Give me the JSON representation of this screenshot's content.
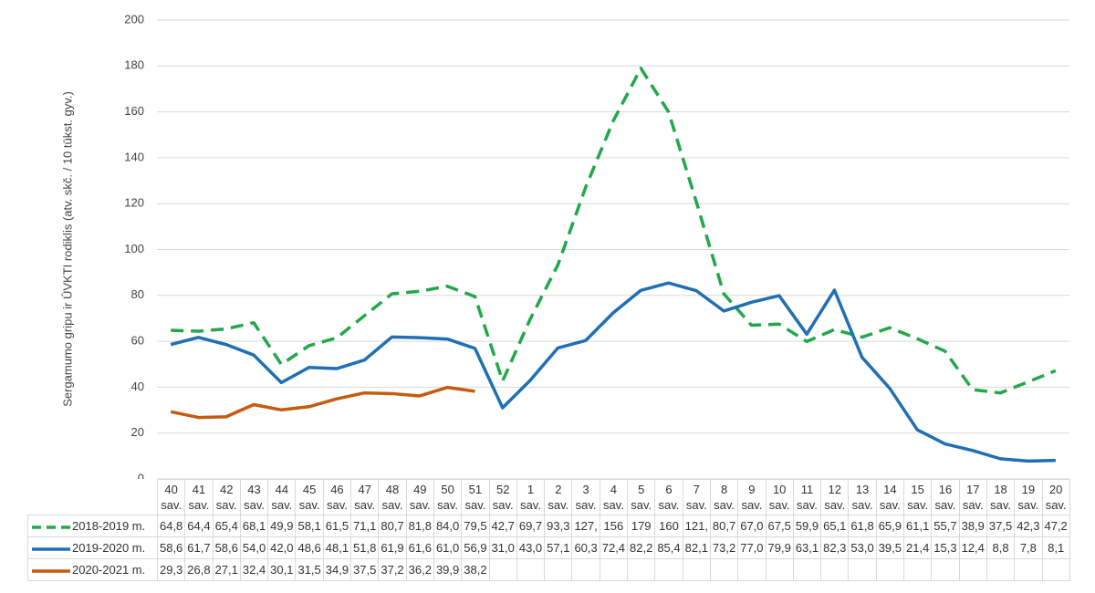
{
  "chart_data": {
    "type": "line",
    "y_label": "Sergamumo gripu ir ŪVKTI rodiklis (atv. skč. / 10 tūkst. gyv.)",
    "categories": [
      "40 sav.",
      "41 sav.",
      "42 sav.",
      "43 sav.",
      "44 sav.",
      "45 sav.",
      "46 sav.",
      "47 sav.",
      "48 sav.",
      "49 sav.",
      "50 sav.",
      "51 sav.",
      "52 sav.",
      "1 sav.",
      "2 sav.",
      "3 sav.",
      "4 sav.",
      "5 sav.",
      "6 sav.",
      "7 sav.",
      "8 sav.",
      "9 sav.",
      "10 sav.",
      "11 sav.",
      "12 sav.",
      "13 sav.",
      "14 sav.",
      "15 sav.",
      "16 sav.",
      "17 sav.",
      "18 sav.",
      "19 sav.",
      "20 sav."
    ],
    "ylim": [
      0,
      200
    ],
    "yticks": [
      0,
      20,
      40,
      60,
      80,
      100,
      120,
      140,
      160,
      180,
      200
    ],
    "grid": true,
    "series": [
      {
        "name": "2018-2019 m.",
        "color": "#22a84a",
        "dashed": true,
        "values": [
          64.8,
          64.4,
          65.4,
          68.1,
          49.9,
          58.1,
          61.5,
          71.1,
          80.7,
          81.8,
          84.0,
          79.5,
          42.7,
          69.7,
          93.3,
          127,
          156,
          179,
          160,
          121,
          80.7,
          67.0,
          67.5,
          59.9,
          65.1,
          61.8,
          65.9,
          61.1,
          55.7,
          38.9,
          37.5,
          42.3,
          47.2
        ],
        "value_labels": [
          "64,8",
          "64,4",
          "65,4",
          "68,1",
          "49,9",
          "58,1",
          "61,5",
          "71,1",
          "80,7",
          "81,8",
          "84,0",
          "79,5",
          "42,7",
          "69,7",
          "93,3",
          "127,",
          "156",
          "179",
          "160",
          "121,",
          "80,7",
          "67,0",
          "67,5",
          "59,9",
          "65,1",
          "61,8",
          "65,9",
          "61,1",
          "55,7",
          "38,9",
          "37,5",
          "42,3",
          "47,2"
        ]
      },
      {
        "name": "2019-2020 m.",
        "color": "#1f6fb5",
        "dashed": false,
        "values": [
          58.6,
          61.7,
          58.6,
          54.0,
          42.0,
          48.6,
          48.1,
          51.8,
          61.9,
          61.6,
          61.0,
          56.9,
          31.0,
          43.0,
          57.1,
          60.3,
          72.4,
          82.2,
          85.4,
          82.1,
          73.2,
          77.0,
          79.9,
          63.1,
          82.3,
          53.0,
          39.5,
          21.4,
          15.3,
          12.4,
          8.8,
          7.8,
          8.1
        ],
        "value_labels": [
          "58,6",
          "61,7",
          "58,6",
          "54,0",
          "42,0",
          "48,6",
          "48,1",
          "51,8",
          "61,9",
          "61,6",
          "61,0",
          "56,9",
          "31,0",
          "43,0",
          "57,1",
          "60,3",
          "72,4",
          "82,2",
          "85,4",
          "82,1",
          "73,2",
          "77,0",
          "79,9",
          "63,1",
          "82,3",
          "53,0",
          "39,5",
          "21,4",
          "15,3",
          "12,4",
          "8,8",
          "7,8",
          "8,1"
        ]
      },
      {
        "name": "2020-2021 m.",
        "color": "#c55a11",
        "dashed": false,
        "values": [
          29.3,
          26.8,
          27.1,
          32.4,
          30.1,
          31.5,
          34.9,
          37.5,
          37.2,
          36.2,
          39.9,
          38.2,
          null,
          null,
          null,
          null,
          null,
          null,
          null,
          null,
          null,
          null,
          null,
          null,
          null,
          null,
          null,
          null,
          null,
          null,
          null,
          null,
          null
        ],
        "value_labels": [
          "29,3",
          "26,8",
          "27,1",
          "32,4",
          "30,1",
          "31,5",
          "34,9",
          "37,5",
          "37,2",
          "36,2",
          "39,9",
          "38,2",
          null,
          null,
          null,
          null,
          null,
          null,
          null,
          null,
          null,
          null,
          null,
          null,
          null,
          null,
          null,
          null,
          null,
          null,
          null,
          null,
          null
        ]
      }
    ]
  }
}
